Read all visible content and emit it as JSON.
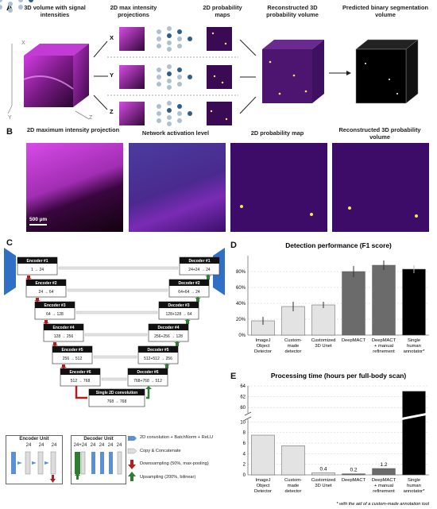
{
  "panelA": {
    "label": "A",
    "titles": {
      "volume": "3D volume with signal intensities",
      "mip": "2D max intensity projections",
      "prob": "2D probability maps",
      "recon": "Reconstructed 3D probability volume",
      "seg": "Predicted binary segmentation volume"
    },
    "axes": [
      "X",
      "Y",
      "Z"
    ],
    "rows": [
      "X",
      "Y",
      "Z"
    ]
  },
  "panelB": {
    "label": "B",
    "titles": [
      "2D maximum intensity projection",
      "Network activation level",
      "2D probability map",
      "Reconstructed 3D probability volume"
    ],
    "scalebar": "500 µm"
  },
  "panelC": {
    "label": "C",
    "encoders": [
      {
        "name": "Encoder #1",
        "dims": "1 → 24"
      },
      {
        "name": "Encoder #2",
        "dims": "24 → 64"
      },
      {
        "name": "Encoder #3",
        "dims": "64 → 128"
      },
      {
        "name": "Encoder #4",
        "dims": "128 → 256"
      },
      {
        "name": "Encoder #5",
        "dims": "256 → 512"
      },
      {
        "name": "Encoder #6",
        "dims": "512 → 768"
      }
    ],
    "decoders": [
      {
        "name": "Decoder #1",
        "dims": "24+24 → 24"
      },
      {
        "name": "Decoder #2",
        "dims": "64+64 → 24"
      },
      {
        "name": "Decoder #3",
        "dims": "128+128 → 64"
      },
      {
        "name": "Decoder #4",
        "dims": "256+256 → 128"
      },
      {
        "name": "Decoder #5",
        "dims": "512+512 → 256"
      },
      {
        "name": "Decoder #6",
        "dims": "768+768 → 512"
      }
    ],
    "bottleneck": {
      "name": "Single 2D convolution",
      "dims": "768 → 768"
    },
    "encoder_unit": {
      "title": "Encoder Unit",
      "nums": [
        "24",
        "24",
        "24"
      ]
    },
    "decoder_unit": {
      "title": "Decoder Unit",
      "nums": [
        "24+24",
        "24",
        "24",
        "24",
        "24"
      ]
    },
    "legend": [
      {
        "text": "2D convolution + BatchNorm + ReLU",
        "color": "#5b8fd6"
      },
      {
        "text": "Copy & Concatenate",
        "color": "#bbbbbb"
      },
      {
        "text": "Downsampling (50%, max-pooling)",
        "color": "#b71c1c"
      },
      {
        "text": "Upsampling (200%, bilinear)",
        "color": "#2e7d32"
      }
    ]
  },
  "chart_data": [
    {
      "type": "bar",
      "panel": "D",
      "title": "Detection performance (F1 score)",
      "categories": [
        "ImageJ Object Detector",
        "Custom-made detector",
        "Customized 3D Unet",
        "DeepMACT",
        "DeepMACT + manual refinement",
        "Single human annotator*"
      ],
      "category_lines": [
        [
          "ImageJ",
          "Object",
          "Detector"
        ],
        [
          "Custom-",
          "made",
          "detector"
        ],
        [
          "Customized",
          "3D Unet"
        ],
        [
          "DeepMACT"
        ],
        [
          "DeepMACT",
          "+ manual",
          "refinement"
        ],
        [
          "Single",
          "human",
          "annotator*"
        ]
      ],
      "values": [
        18,
        36,
        38,
        80,
        88,
        83
      ],
      "errors": [
        5,
        6,
        4,
        7,
        6,
        5
      ],
      "colors": [
        "#e3e3e3",
        "#e3e3e3",
        "#e3e3e3",
        "#6b6b6b",
        "#6b6b6b",
        "#000000"
      ],
      "ylim": [
        0,
        100
      ],
      "yticks": [
        "0%",
        "20%",
        "40%",
        "60%",
        "80%"
      ],
      "ytick_values": [
        0,
        20,
        40,
        60,
        80
      ],
      "grid": true
    },
    {
      "type": "bar",
      "panel": "E",
      "title": "Processing time (hours per full-body scan)",
      "categories": [
        "ImageJ Object Detector",
        "Custom-made detector",
        "Customized 3D Unet",
        "DeepMACT",
        "DeepMACT + manual refinement",
        "Single human annotator*"
      ],
      "category_lines": [
        [
          "ImageJ",
          "Object",
          "Detector"
        ],
        [
          "Custom-",
          "made",
          "detector"
        ],
        [
          "Customized",
          "3D Unet"
        ],
        [
          "DeepMACT"
        ],
        [
          "DeepMACT",
          "+ manual",
          "refinement"
        ],
        [
          "Single",
          "human",
          "annotator*"
        ]
      ],
      "values": [
        7.5,
        5.5,
        0.4,
        0.2,
        1.2,
        63
      ],
      "data_labels": [
        "",
        "",
        "0.4",
        "0.2",
        "1.2",
        ""
      ],
      "colors": [
        "#e3e3e3",
        "#e3e3e3",
        "#e3e3e3",
        "#6b6b6b",
        "#6b6b6b",
        "#000000"
      ],
      "broken_axis": {
        "lower": [
          0,
          10.5
        ],
        "upper": [
          59,
          64
        ]
      },
      "yticks_lower": [
        0,
        2,
        4,
        6,
        8,
        10
      ],
      "yticks_upper": [
        60,
        62,
        64
      ],
      "grid": true,
      "footnote": "* with the aid of a custom-made annotation tool"
    }
  ]
}
